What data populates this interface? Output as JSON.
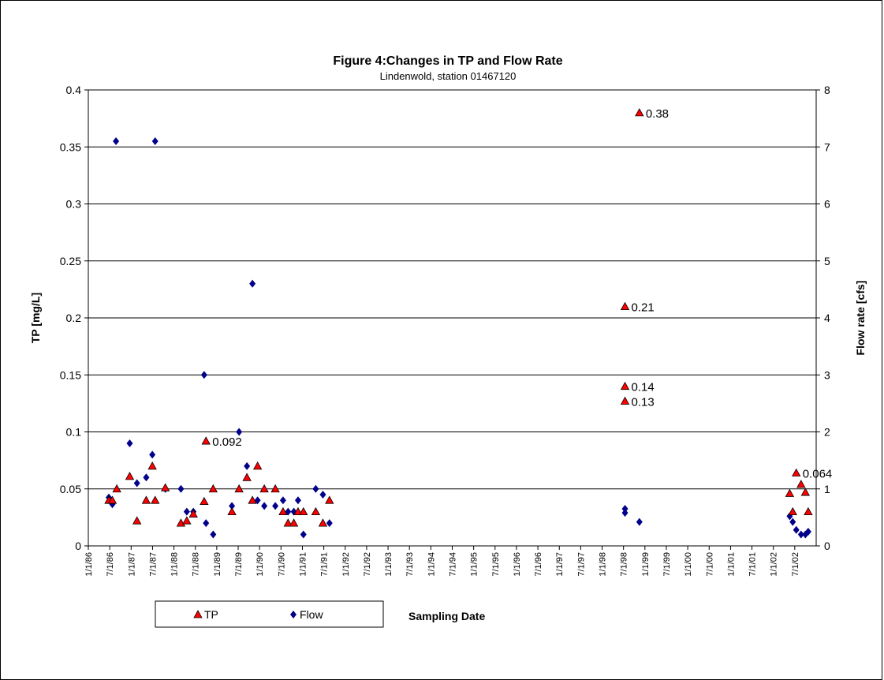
{
  "chart_data": {
    "type": "scatter",
    "title": "Figure 4:Changes in TP and Flow Rate",
    "subtitle": "Lindenwold, station 01467120",
    "xlabel": "Sampling Date",
    "ylabel_left": "TP [mg/L]",
    "ylabel_right": "Flow rate [cfs]",
    "ylim_left": [
      0,
      0.4
    ],
    "ylim_right": [
      0,
      8
    ],
    "yticks_left": [
      "0",
      "0.05",
      "0.1",
      "0.15",
      "0.2",
      "0.25",
      "0.3",
      "0.35",
      "0.4"
    ],
    "yticks_right": [
      "0",
      "1",
      "2",
      "3",
      "4",
      "5",
      "6",
      "7",
      "8"
    ],
    "xlim": [
      "1986-01-01",
      "2003-01-01"
    ],
    "xticks": [
      "1/1/86",
      "7/1/86",
      "1/1/87",
      "7/1/87",
      "1/1/88",
      "7/1/88",
      "1/1/89",
      "7/1/89",
      "1/1/90",
      "7/1/90",
      "1/1/91",
      "7/1/91",
      "1/1/92",
      "7/1/92",
      "1/1/93",
      "7/1/93",
      "1/1/94",
      "7/1/94",
      "1/1/95",
      "7/1/95",
      "1/1/96",
      "7/1/96",
      "1/1/97",
      "7/1/97",
      "1/1/98",
      "7/1/98",
      "1/1/99",
      "7/1/99",
      "1/1/00",
      "7/1/00",
      "1/1/01",
      "7/1/01",
      "1/1/02",
      "7/1/02"
    ],
    "grid": "horizontal",
    "legend": "bottom-left",
    "series": [
      {
        "name": "TP",
        "axis": "left",
        "marker": "triangle",
        "color": "#ff0000",
        "points": [
          {
            "x": "1986-06-25",
            "y": 0.04
          },
          {
            "x": "1986-07-25",
            "y": 0.04
          },
          {
            "x": "1986-09-01",
            "y": 0.05
          },
          {
            "x": "1986-12-20",
            "y": 0.061
          },
          {
            "x": "1987-02-20",
            "y": 0.022
          },
          {
            "x": "1987-05-10",
            "y": 0.04
          },
          {
            "x": "1987-07-01",
            "y": 0.07
          },
          {
            "x": "1987-07-25",
            "y": 0.04
          },
          {
            "x": "1987-10-20",
            "y": 0.051
          },
          {
            "x": "1988-03-01",
            "y": 0.02
          },
          {
            "x": "1988-04-20",
            "y": 0.022
          },
          {
            "x": "1988-06-15",
            "y": 0.028
          },
          {
            "x": "1988-09-15",
            "y": 0.039
          },
          {
            "x": "1988-10-01",
            "y": 0.092
          },
          {
            "x": "1988-12-01",
            "y": 0.05
          },
          {
            "x": "1989-05-10",
            "y": 0.03
          },
          {
            "x": "1989-07-10",
            "y": 0.05
          },
          {
            "x": "1989-09-15",
            "y": 0.06
          },
          {
            "x": "1989-11-01",
            "y": 0.04
          },
          {
            "x": "1989-12-15",
            "y": 0.07
          },
          {
            "x": "1990-02-10",
            "y": 0.05
          },
          {
            "x": "1990-05-15",
            "y": 0.05
          },
          {
            "x": "1990-07-20",
            "y": 0.03
          },
          {
            "x": "1990-09-01",
            "y": 0.02
          },
          {
            "x": "1990-10-20",
            "y": 0.02
          },
          {
            "x": "1990-11-25",
            "y": 0.03
          },
          {
            "x": "1991-01-10",
            "y": 0.03
          },
          {
            "x": "1991-04-25",
            "y": 0.03
          },
          {
            "x": "1991-06-25",
            "y": 0.02
          },
          {
            "x": "1991-08-20",
            "y": 0.04
          },
          {
            "x": "1998-07-15",
            "y": 0.21
          },
          {
            "x": "1998-07-15",
            "y": 0.14
          },
          {
            "x": "1998-07-15",
            "y": 0.127
          },
          {
            "x": "1998-11-15",
            "y": 0.38
          },
          {
            "x": "2002-05-20",
            "y": 0.046
          },
          {
            "x": "2002-06-15",
            "y": 0.03
          },
          {
            "x": "2002-07-15",
            "y": 0.064
          },
          {
            "x": "2002-08-25",
            "y": 0.054
          },
          {
            "x": "2002-10-01",
            "y": 0.047
          },
          {
            "x": "2002-10-25",
            "y": 0.03
          }
        ]
      },
      {
        "name": "Flow",
        "axis": "right",
        "marker": "diamond",
        "color": "#00008b",
        "points": [
          {
            "x": "1986-06-25",
            "y": 0.85
          },
          {
            "x": "1986-07-25",
            "y": 0.73
          },
          {
            "x": "1986-08-25",
            "y": 7.1
          },
          {
            "x": "1986-12-20",
            "y": 1.8
          },
          {
            "x": "1987-02-20",
            "y": 1.1
          },
          {
            "x": "1987-05-10",
            "y": 1.2
          },
          {
            "x": "1987-07-01",
            "y": 1.6
          },
          {
            "x": "1987-07-25",
            "y": 7.1
          },
          {
            "x": "1987-10-20",
            "y": 1.0
          },
          {
            "x": "1988-03-01",
            "y": 1.0
          },
          {
            "x": "1988-04-20",
            "y": 0.6
          },
          {
            "x": "1988-06-15",
            "y": 0.6
          },
          {
            "x": "1988-09-15",
            "y": 3.0
          },
          {
            "x": "1988-10-01",
            "y": 0.4
          },
          {
            "x": "1988-12-01",
            "y": 0.2
          },
          {
            "x": "1989-05-10",
            "y": 0.7
          },
          {
            "x": "1989-07-10",
            "y": 2.0
          },
          {
            "x": "1989-09-15",
            "y": 1.4
          },
          {
            "x": "1989-11-01",
            "y": 4.6
          },
          {
            "x": "1989-12-15",
            "y": 0.8
          },
          {
            "x": "1990-02-10",
            "y": 0.7
          },
          {
            "x": "1990-05-15",
            "y": 0.7
          },
          {
            "x": "1990-07-20",
            "y": 0.8
          },
          {
            "x": "1990-09-01",
            "y": 0.6
          },
          {
            "x": "1990-10-20",
            "y": 0.6
          },
          {
            "x": "1990-11-25",
            "y": 0.8
          },
          {
            "x": "1991-01-10",
            "y": 0.2
          },
          {
            "x": "1991-04-25",
            "y": 1.0
          },
          {
            "x": "1991-06-25",
            "y": 0.9
          },
          {
            "x": "1991-08-20",
            "y": 0.4
          },
          {
            "x": "1998-07-15",
            "y": 0.65
          },
          {
            "x": "1998-07-15",
            "y": 0.58
          },
          {
            "x": "1998-11-15",
            "y": 0.42
          },
          {
            "x": "2002-05-20",
            "y": 0.52
          },
          {
            "x": "2002-06-15",
            "y": 0.42
          },
          {
            "x": "2002-07-15",
            "y": 0.28
          },
          {
            "x": "2002-08-25",
            "y": 0.2
          },
          {
            "x": "2002-10-01",
            "y": 0.2
          },
          {
            "x": "2002-10-25",
            "y": 0.25
          }
        ]
      }
    ],
    "annotations": [
      {
        "x": "1988-10-01",
        "y": 0.092,
        "text": "0.092"
      },
      {
        "x": "1998-11-15",
        "y": 0.38,
        "text": "0.38"
      },
      {
        "x": "1998-07-15",
        "y": 0.21,
        "text": "0.21"
      },
      {
        "x": "1998-07-15",
        "y": 0.14,
        "text": "0.14"
      },
      {
        "x": "1998-07-15",
        "y": 0.127,
        "text": "0.13"
      },
      {
        "x": "2002-07-15",
        "y": 0.064,
        "text": "0.064"
      }
    ]
  }
}
